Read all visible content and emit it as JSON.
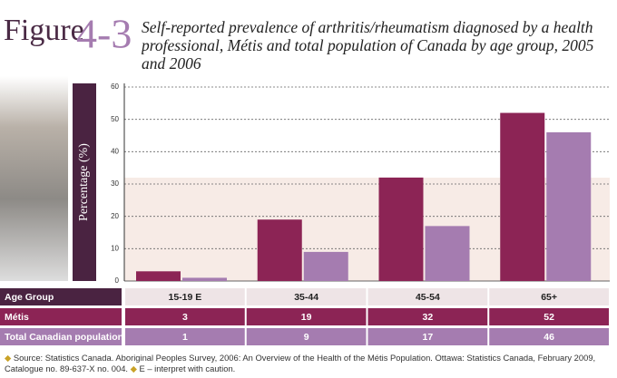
{
  "chart_data": {
    "type": "bar",
    "figure_word": "Figure",
    "figure_number": "4-3",
    "title": "Self-reported prevalence of arthritis/rheumatism diagnosed by a health professional, Métis and total population of Canada by age group, 2005 and 2006",
    "y_label": "Percentage (%)",
    "table_header": "Age Group",
    "categories": [
      "15-19 E",
      "35-44",
      "45-54",
      "65+"
    ],
    "series": [
      {
        "name": "Métis",
        "color": "#8c2455",
        "values": [
          3,
          19,
          32,
          52
        ]
      },
      {
        "name": "Total Canadian population",
        "color": "#a57cb0",
        "values": [
          1,
          9,
          17,
          46
        ]
      }
    ],
    "ylim": [
      0,
      60
    ],
    "yticks": [
      0,
      10,
      20,
      30,
      40,
      50,
      60
    ],
    "grid": true,
    "source": "Source: Statistics Canada. Aboriginal Peoples Survey, 2006: An Overview of the Health of the Métis Population. Ottawa: Statistics Canada, February 2009, Catalogue no. 89-637-X no. 004.",
    "note": "E – interpret with caution."
  }
}
